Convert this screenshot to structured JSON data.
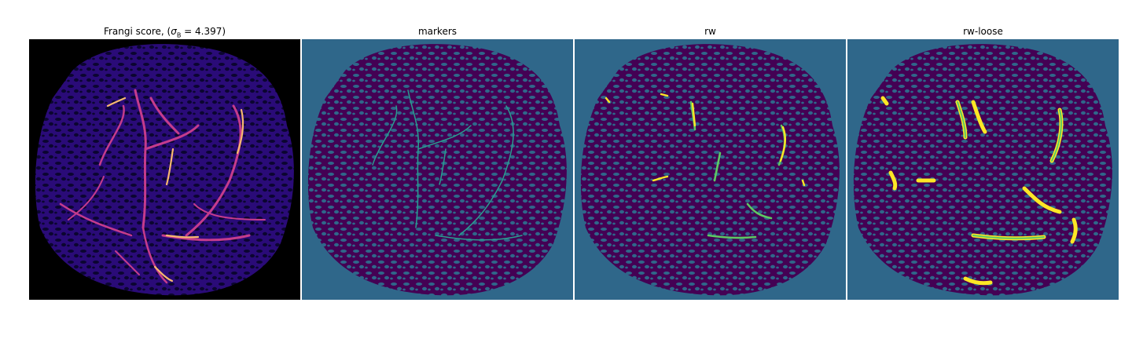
{
  "panels": [
    {
      "id": "frangi",
      "title_prefix": "Frangi score, (",
      "title_sigma": "σ",
      "title_sub": "B",
      "title_suffix": " = 4.397)"
    },
    {
      "id": "markers",
      "title": "markers"
    },
    {
      "id": "rw",
      "title": "rw"
    },
    {
      "id": "rw-loose",
      "title": "rw-loose"
    }
  ],
  "colors": {
    "black_bg": "#000000",
    "frangi_tissue": "#2a0b78",
    "frangi_holes": "#0b0530",
    "frangi_vessel": "#c53c8c",
    "frangi_hot": "#f8b96f",
    "viridis_bg": "#2f678a",
    "viridis_purple": "#440154",
    "viridis_teal": "#2a9d8f",
    "viridis_yellow": "#fde725",
    "viridis_green": "#5ec962"
  }
}
